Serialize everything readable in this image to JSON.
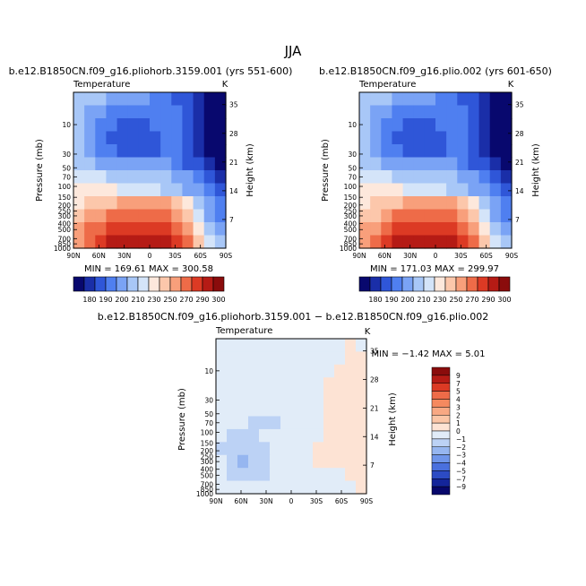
{
  "figure": {
    "title": "JJA"
  },
  "panels": [
    {
      "title": "b.e12.B1850CN.f09_g16.pliohorb.3159.001 (yrs 551-600)",
      "field_label": "Temperature",
      "units": "K",
      "ylabel": "Pressure (mb)",
      "ylabel_right": "Height (km)",
      "stats": "MIN = 169.61   MAX = 300.58"
    },
    {
      "title": "b.e12.B1850CN.f09_g16.plio.002 (yrs 601-650)",
      "field_label": "Temperature",
      "units": "K",
      "ylabel": "Pressure (mb)",
      "ylabel_right": "Height (km)",
      "stats": "MIN = 171.03   MAX = 299.97"
    },
    {
      "title": "b.e12.B1850CN.f09_g16.pliohorb.3159.001  −  b.e12.B1850CN.f09_g16.plio.002",
      "field_label": "Temperature",
      "units": "K",
      "ylabel": "Pressure (mb)",
      "ylabel_right": "Height (km)",
      "stats": "MIN = −1.42   MAX =    5.01"
    }
  ],
  "chart_data": [
    {
      "type": "heatmap",
      "title": "b.e12.B1850CN.f09_g16.pliohorb.3159.001 (yrs 551-600)",
      "units": "K",
      "x": [
        "90N",
        "60N",
        "30N",
        "0",
        "30S",
        "60S",
        "90S"
      ],
      "y_pressure": [
        10,
        30,
        50,
        70,
        100,
        150,
        200,
        250,
        300,
        400,
        500,
        700,
        850,
        1000
      ],
      "y_height_km": [
        7,
        14,
        21,
        28,
        35
      ],
      "ylim": [
        1000,
        3
      ],
      "y_scale": "log",
      "colorbar": [
        180,
        190,
        200,
        210,
        230,
        250,
        270,
        290,
        300
      ],
      "colorbar_colors": [
        "#08086e",
        "#1a2ea8",
        "#2f56d8",
        "#4f7ff0",
        "#7aa3f5",
        "#a8c7f7",
        "#d4e4f9",
        "#fde8dc",
        "#fcc7ab",
        "#f89f7b",
        "#ee6b48",
        "#dc3a24",
        "#b51b15",
        "#8a0c0c"
      ],
      "values": [
        [
          5,
          5,
          5,
          4,
          4,
          4,
          4,
          3,
          3,
          2,
          2,
          1,
          0,
          0
        ],
        [
          5,
          4,
          4,
          3,
          3,
          3,
          3,
          3,
          3,
          3,
          2,
          1,
          0,
          0
        ],
        [
          5,
          4,
          3,
          3,
          2,
          2,
          2,
          3,
          3,
          3,
          2,
          1,
          0,
          0
        ],
        [
          5,
          4,
          3,
          2,
          2,
          2,
          2,
          2,
          3,
          3,
          2,
          1,
          0,
          0
        ],
        [
          5,
          4,
          3,
          3,
          2,
          2,
          2,
          2,
          3,
          3,
          2,
          1,
          0,
          0
        ],
        [
          5,
          5,
          4,
          4,
          4,
          4,
          4,
          4,
          4,
          3,
          2,
          2,
          1,
          0
        ],
        [
          6,
          6,
          6,
          5,
          5,
          5,
          5,
          5,
          5,
          4,
          4,
          3,
          2,
          1
        ],
        [
          7,
          7,
          7,
          7,
          6,
          6,
          6,
          6,
          5,
          5,
          4,
          4,
          3,
          2
        ],
        [
          7,
          8,
          8,
          8,
          9,
          9,
          9,
          9,
          9,
          8,
          7,
          5,
          4,
          3
        ],
        [
          8,
          9,
          9,
          10,
          10,
          10,
          10,
          10,
          10,
          9,
          8,
          6,
          4,
          3
        ],
        [
          9,
          10,
          10,
          11,
          11,
          11,
          11,
          11,
          11,
          10,
          9,
          7,
          5,
          4
        ],
        [
          9,
          10,
          11,
          12,
          12,
          12,
          12,
          12,
          12,
          11,
          10,
          8,
          6,
          5
        ]
      ],
      "min": 169.61,
      "max": 300.58
    },
    {
      "type": "heatmap",
      "title": "b.e12.B1850CN.f09_g16.plio.002 (yrs 601-650)",
      "units": "K",
      "x": [
        "90N",
        "60N",
        "30N",
        "0",
        "30S",
        "60S",
        "90S"
      ],
      "y_pressure": [
        10,
        30,
        50,
        70,
        100,
        150,
        200,
        250,
        300,
        400,
        500,
        700,
        850,
        1000
      ],
      "y_height_km": [
        7,
        14,
        21,
        28,
        35
      ],
      "ylim": [
        1000,
        3
      ],
      "y_scale": "log",
      "colorbar": [
        180,
        190,
        200,
        210,
        230,
        250,
        270,
        290,
        300
      ],
      "colorbar_colors": [
        "#08086e",
        "#1a2ea8",
        "#2f56d8",
        "#4f7ff0",
        "#7aa3f5",
        "#a8c7f7",
        "#d4e4f9",
        "#fde8dc",
        "#fcc7ab",
        "#f89f7b",
        "#ee6b48",
        "#dc3a24",
        "#b51b15",
        "#8a0c0c"
      ],
      "values": [
        [
          5,
          5,
          5,
          4,
          4,
          4,
          4,
          3,
          3,
          2,
          2,
          1,
          0,
          0
        ],
        [
          5,
          4,
          4,
          3,
          3,
          3,
          3,
          3,
          3,
          3,
          2,
          1,
          0,
          0
        ],
        [
          5,
          4,
          3,
          3,
          2,
          2,
          2,
          3,
          3,
          3,
          2,
          1,
          0,
          0
        ],
        [
          5,
          4,
          3,
          2,
          2,
          2,
          2,
          2,
          3,
          3,
          2,
          1,
          0,
          0
        ],
        [
          5,
          4,
          3,
          3,
          2,
          2,
          2,
          2,
          3,
          3,
          2,
          1,
          0,
          0
        ],
        [
          5,
          5,
          4,
          4,
          4,
          4,
          4,
          4,
          4,
          3,
          2,
          2,
          1,
          0
        ],
        [
          6,
          6,
          6,
          5,
          5,
          5,
          5,
          5,
          5,
          4,
          4,
          3,
          2,
          1
        ],
        [
          7,
          7,
          7,
          7,
          6,
          6,
          6,
          6,
          5,
          5,
          4,
          4,
          3,
          2
        ],
        [
          7,
          8,
          8,
          8,
          9,
          9,
          9,
          9,
          9,
          8,
          7,
          5,
          4,
          3
        ],
        [
          8,
          8,
          9,
          10,
          10,
          10,
          10,
          10,
          10,
          9,
          8,
          6,
          4,
          3
        ],
        [
          9,
          9,
          10,
          11,
          11,
          11,
          11,
          11,
          11,
          10,
          9,
          7,
          5,
          4
        ],
        [
          9,
          10,
          11,
          12,
          12,
          12,
          12,
          12,
          12,
          11,
          10,
          8,
          6,
          5
        ]
      ],
      "min": 171.03,
      "max": 299.97
    },
    {
      "type": "heatmap",
      "title": "b.e12.B1850CN.f09_g16.pliohorb.3159.001  −  b.e12.B1850CN.f09_g16.plio.002",
      "units": "K",
      "x": [
        "90N",
        "60N",
        "30N",
        "0",
        "30S",
        "60S",
        "90S"
      ],
      "y_pressure": [
        10,
        30,
        50,
        70,
        100,
        150,
        200,
        250,
        300,
        400,
        500,
        700,
        850,
        1000
      ],
      "y_height_km": [
        7,
        14,
        21,
        28,
        35
      ],
      "ylim": [
        1000,
        3
      ],
      "y_scale": "log",
      "colorbar": [
        9,
        7,
        5,
        4,
        3,
        2,
        1,
        0,
        -1,
        -2,
        -3,
        -4,
        -5,
        -7,
        -9
      ],
      "colorbar_colors": [
        "#8a0c0c",
        "#b51b15",
        "#dc3a24",
        "#ee6b48",
        "#f5895f",
        "#f8a883",
        "#fbc5a6",
        "#fde3d4",
        "#e1ecf8",
        "#bcd2f5",
        "#96b6f0",
        "#6f95ea",
        "#4a70de",
        "#2c4bc4",
        "#14259a",
        "#07076b"
      ],
      "values": [
        [
          8,
          8,
          8,
          8,
          8,
          8,
          8,
          8,
          8,
          8,
          8,
          8,
          7,
          8
        ],
        [
          8,
          8,
          8,
          8,
          8,
          8,
          8,
          8,
          8,
          8,
          8,
          8,
          7,
          7
        ],
        [
          8,
          8,
          8,
          8,
          8,
          8,
          8,
          8,
          8,
          8,
          8,
          7,
          7,
          7
        ],
        [
          8,
          8,
          8,
          8,
          8,
          8,
          8,
          8,
          8,
          8,
          7,
          7,
          7,
          7
        ],
        [
          8,
          8,
          8,
          8,
          8,
          8,
          8,
          8,
          8,
          8,
          7,
          7,
          7,
          7
        ],
        [
          8,
          8,
          8,
          8,
          8,
          8,
          8,
          8,
          8,
          8,
          7,
          7,
          7,
          7
        ],
        [
          8,
          8,
          8,
          9,
          9,
          9,
          8,
          8,
          8,
          8,
          7,
          7,
          7,
          7
        ],
        [
          8,
          9,
          9,
          9,
          8,
          8,
          8,
          8,
          8,
          8,
          7,
          7,
          7,
          7
        ],
        [
          9,
          9,
          9,
          9,
          9,
          8,
          8,
          8,
          8,
          7,
          7,
          7,
          7,
          7
        ],
        [
          8,
          9,
          10,
          9,
          9,
          8,
          8,
          8,
          8,
          7,
          7,
          7,
          7,
          7
        ],
        [
          8,
          9,
          9,
          9,
          9,
          8,
          8,
          8,
          8,
          8,
          8,
          8,
          7,
          7
        ],
        [
          8,
          8,
          8,
          8,
          8,
          8,
          8,
          8,
          8,
          8,
          8,
          8,
          8,
          7
        ]
      ],
      "min": -1.42,
      "max": 5.01
    }
  ]
}
